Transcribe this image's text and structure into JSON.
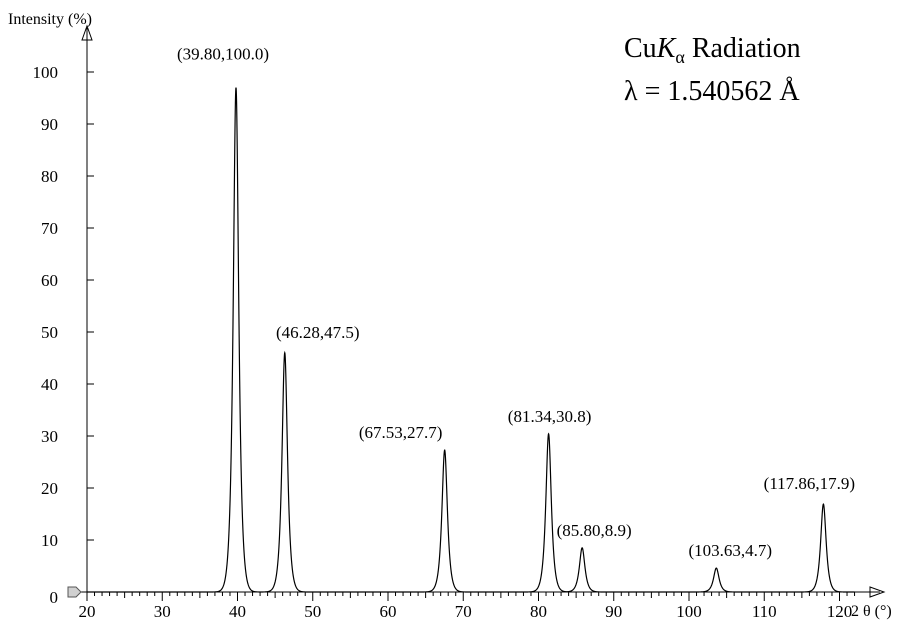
{
  "chart_data": {
    "type": "line",
    "title": "",
    "xlabel": "2 θ (°)",
    "ylabel": "Intensity (%)",
    "xlim": [
      20,
      125
    ],
    "ylim": [
      0,
      105
    ],
    "x_ticks": [
      20,
      30,
      40,
      50,
      60,
      70,
      80,
      90,
      100,
      110,
      120
    ],
    "y_ticks": [
      0,
      10,
      20,
      30,
      40,
      50,
      60,
      70,
      80,
      90,
      100
    ],
    "grid": false,
    "legend": "none",
    "series": [
      {
        "color": "#000000",
        "peaks": [
          {
            "x": 39.8,
            "y": 97.0,
            "label": "(39.80,100.0)"
          },
          {
            "x": 46.28,
            "y": 46.0,
            "label": "(46.28,47.5)"
          },
          {
            "x": 67.53,
            "y": 27.3,
            "label": "(67.53,27.7)"
          },
          {
            "x": 81.34,
            "y": 30.4,
            "label": "(81.34,30.8)"
          },
          {
            "x": 85.8,
            "y": 8.5,
            "label": "(85.80,8.9)"
          },
          {
            "x": 103.63,
            "y": 4.6,
            "label": "(103.63,4.7)"
          },
          {
            "x": 117.86,
            "y": 16.9,
            "label": "(117.86,17.9)"
          }
        ]
      }
    ],
    "annotation": {
      "line1": {
        "prefix": "Cu",
        "italic": "K",
        "subscript": "α",
        "suffix": " Radiation"
      },
      "line2": "λ = 1.540562 Å"
    }
  }
}
